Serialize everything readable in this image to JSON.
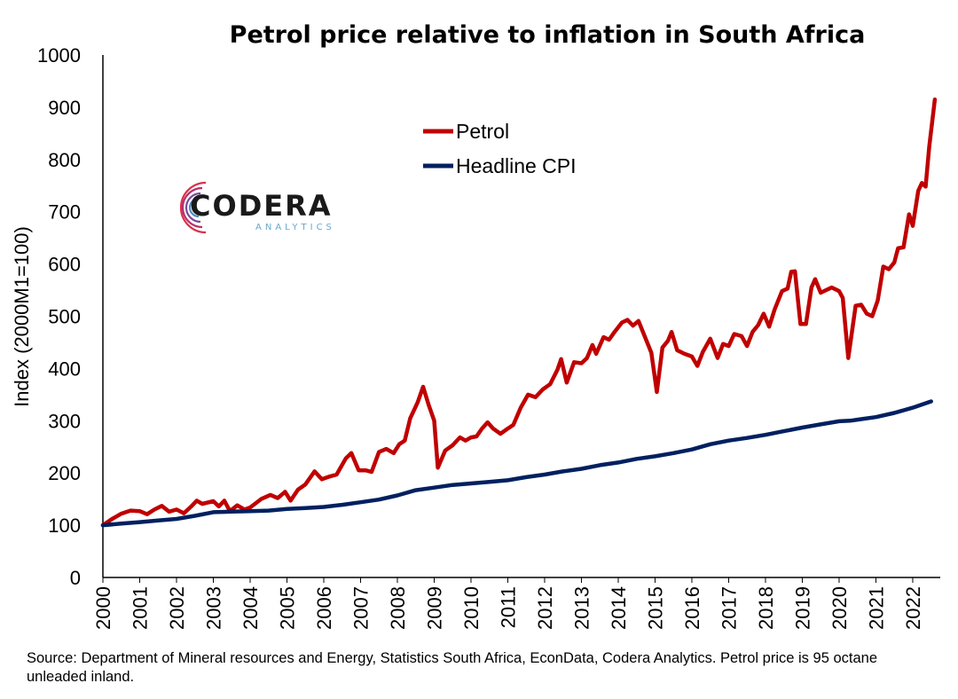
{
  "chart_data": {
    "type": "line",
    "title": "Petrol price relative to inflation in South Africa",
    "xlabel": "",
    "ylabel": "Index (2000M1=100)",
    "ylim": [
      0,
      1000
    ],
    "yticks": [
      0,
      100,
      200,
      300,
      400,
      500,
      600,
      700,
      800,
      900,
      1000
    ],
    "xlim": [
      2000,
      2022.7
    ],
    "xticks": [
      2000,
      2001,
      2002,
      2003,
      2004,
      2005,
      2006,
      2007,
      2008,
      2009,
      2010,
      2011,
      2012,
      2013,
      2014,
      2015,
      2016,
      2017,
      2018,
      2019,
      2020,
      2021,
      2022
    ],
    "grid": false,
    "legend": "upper-center",
    "series": [
      {
        "name": "Petrol",
        "color": "#c00000",
        "points": [
          [
            2000.0,
            100
          ],
          [
            2000.25,
            112
          ],
          [
            2000.5,
            122
          ],
          [
            2000.75,
            128
          ],
          [
            2001.0,
            127
          ],
          [
            2001.2,
            121
          ],
          [
            2001.4,
            130
          ],
          [
            2001.6,
            137
          ],
          [
            2001.8,
            126
          ],
          [
            2002.0,
            130
          ],
          [
            2002.2,
            123
          ],
          [
            2002.4,
            136
          ],
          [
            2002.55,
            147
          ],
          [
            2002.7,
            141
          ],
          [
            2003.0,
            146
          ],
          [
            2003.15,
            136
          ],
          [
            2003.3,
            147
          ],
          [
            2003.45,
            127
          ],
          [
            2003.65,
            138
          ],
          [
            2003.85,
            130
          ],
          [
            2004.0,
            134
          ],
          [
            2004.3,
            150
          ],
          [
            2004.55,
            158
          ],
          [
            2004.75,
            152
          ],
          [
            2004.95,
            164
          ],
          [
            2005.1,
            147
          ],
          [
            2005.3,
            168
          ],
          [
            2005.5,
            178
          ],
          [
            2005.75,
            203
          ],
          [
            2005.95,
            188
          ],
          [
            2006.15,
            193
          ],
          [
            2006.35,
            197
          ],
          [
            2006.6,
            228
          ],
          [
            2006.75,
            238
          ],
          [
            2006.95,
            205
          ],
          [
            2007.15,
            205
          ],
          [
            2007.3,
            202
          ],
          [
            2007.5,
            240
          ],
          [
            2007.7,
            246
          ],
          [
            2007.9,
            238
          ],
          [
            2008.05,
            255
          ],
          [
            2008.2,
            262
          ],
          [
            2008.35,
            305
          ],
          [
            2008.55,
            335
          ],
          [
            2008.7,
            365
          ],
          [
            2008.85,
            330
          ],
          [
            2009.0,
            300
          ],
          [
            2009.1,
            210
          ],
          [
            2009.3,
            243
          ],
          [
            2009.5,
            253
          ],
          [
            2009.7,
            268
          ],
          [
            2009.85,
            262
          ],
          [
            2010.0,
            268
          ],
          [
            2010.15,
            270
          ],
          [
            2010.3,
            285
          ],
          [
            2010.45,
            297
          ],
          [
            2010.6,
            285
          ],
          [
            2010.8,
            275
          ],
          [
            2011.0,
            285
          ],
          [
            2011.15,
            292
          ],
          [
            2011.35,
            325
          ],
          [
            2011.55,
            350
          ],
          [
            2011.75,
            345
          ],
          [
            2011.95,
            360
          ],
          [
            2012.15,
            370
          ],
          [
            2012.35,
            398
          ],
          [
            2012.45,
            418
          ],
          [
            2012.6,
            373
          ],
          [
            2012.8,
            412
          ],
          [
            2013.0,
            410
          ],
          [
            2013.15,
            420
          ],
          [
            2013.3,
            445
          ],
          [
            2013.4,
            428
          ],
          [
            2013.6,
            460
          ],
          [
            2013.75,
            455
          ],
          [
            2013.9,
            470
          ],
          [
            2014.1,
            488
          ],
          [
            2014.25,
            493
          ],
          [
            2014.4,
            482
          ],
          [
            2014.55,
            491
          ],
          [
            2014.7,
            465
          ],
          [
            2014.9,
            430
          ],
          [
            2015.05,
            355
          ],
          [
            2015.2,
            440
          ],
          [
            2015.35,
            453
          ],
          [
            2015.45,
            470
          ],
          [
            2015.6,
            435
          ],
          [
            2015.8,
            428
          ],
          [
            2016.0,
            423
          ],
          [
            2016.15,
            405
          ],
          [
            2016.3,
            432
          ],
          [
            2016.5,
            457
          ],
          [
            2016.7,
            420
          ],
          [
            2016.85,
            447
          ],
          [
            2017.0,
            443
          ],
          [
            2017.15,
            466
          ],
          [
            2017.35,
            462
          ],
          [
            2017.5,
            443
          ],
          [
            2017.65,
            470
          ],
          [
            2017.8,
            483
          ],
          [
            2017.95,
            505
          ],
          [
            2018.1,
            480
          ],
          [
            2018.25,
            513
          ],
          [
            2018.45,
            548
          ],
          [
            2018.6,
            553
          ],
          [
            2018.7,
            585
          ],
          [
            2018.8,
            586
          ],
          [
            2018.95,
            485
          ],
          [
            2019.1,
            485
          ],
          [
            2019.25,
            555
          ],
          [
            2019.35,
            571
          ],
          [
            2019.5,
            545
          ],
          [
            2019.65,
            550
          ],
          [
            2019.8,
            555
          ],
          [
            2020.0,
            548
          ],
          [
            2020.1,
            535
          ],
          [
            2020.25,
            420
          ],
          [
            2020.45,
            520
          ],
          [
            2020.6,
            522
          ],
          [
            2020.75,
            505
          ],
          [
            2020.9,
            500
          ],
          [
            2021.05,
            530
          ],
          [
            2021.2,
            595
          ],
          [
            2021.35,
            590
          ],
          [
            2021.5,
            603
          ],
          [
            2021.6,
            630
          ],
          [
            2021.75,
            632
          ],
          [
            2021.9,
            695
          ],
          [
            2022.0,
            673
          ],
          [
            2022.15,
            740
          ],
          [
            2022.25,
            755
          ],
          [
            2022.35,
            748
          ],
          [
            2022.45,
            825
          ],
          [
            2022.6,
            915
          ]
        ]
      },
      {
        "name": "Headline CPI",
        "color": "#002060",
        "points": [
          [
            2000.0,
            100
          ],
          [
            2000.5,
            103
          ],
          [
            2001.0,
            106
          ],
          [
            2001.5,
            109
          ],
          [
            2002.0,
            112
          ],
          [
            2002.5,
            118
          ],
          [
            2003.0,
            125
          ],
          [
            2003.5,
            126
          ],
          [
            2004.0,
            127
          ],
          [
            2004.5,
            128
          ],
          [
            2005.0,
            131
          ],
          [
            2005.5,
            133
          ],
          [
            2006.0,
            135
          ],
          [
            2006.5,
            139
          ],
          [
            2007.0,
            144
          ],
          [
            2007.5,
            149
          ],
          [
            2008.0,
            157
          ],
          [
            2008.5,
            167
          ],
          [
            2009.0,
            172
          ],
          [
            2009.5,
            177
          ],
          [
            2010.0,
            180
          ],
          [
            2010.5,
            183
          ],
          [
            2011.0,
            186
          ],
          [
            2011.5,
            192
          ],
          [
            2012.0,
            197
          ],
          [
            2012.5,
            203
          ],
          [
            2013.0,
            208
          ],
          [
            2013.5,
            215
          ],
          [
            2014.0,
            220
          ],
          [
            2014.5,
            227
          ],
          [
            2015.0,
            232
          ],
          [
            2015.5,
            238
          ],
          [
            2016.0,
            245
          ],
          [
            2016.5,
            255
          ],
          [
            2017.0,
            262
          ],
          [
            2017.5,
            267
          ],
          [
            2018.0,
            273
          ],
          [
            2018.5,
            280
          ],
          [
            2019.0,
            287
          ],
          [
            2019.5,
            293
          ],
          [
            2020.0,
            299
          ],
          [
            2020.3,
            300
          ],
          [
            2020.6,
            303
          ],
          [
            2021.0,
            307
          ],
          [
            2021.5,
            315
          ],
          [
            2022.0,
            325
          ],
          [
            2022.5,
            337
          ]
        ]
      }
    ]
  },
  "logo": {
    "main": "CODERA",
    "sub": "ANALYTICS"
  },
  "source_note": "Source: Department of Mineral resources and Energy, Statistics South Africa, EconData, Codera Analytics. Petrol price is 95 octane unleaded inland."
}
